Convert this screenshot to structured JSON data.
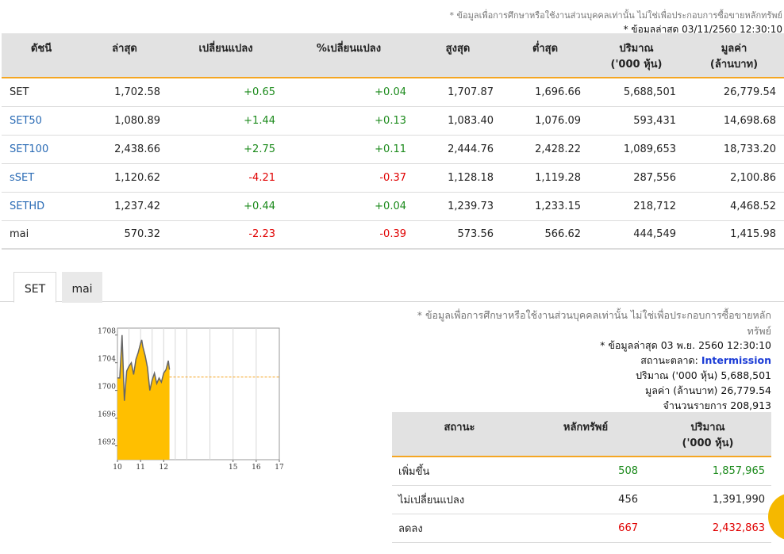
{
  "header": {
    "disclaimer": "* ข้อมูลเพื่อการศึกษาหรือใช้งานส่วนบุคคลเท่านั้น ไม่ใช่เพื่อประกอบการซื้อขายหลักทรัพย์",
    "updated": "* ข้อมูลล่าสุด 03/11/2560 12:30:10"
  },
  "index_table": {
    "headers": {
      "name": "ดัชนี",
      "last": "ล่าสุด",
      "change": "เปลี่ยนแปลง",
      "pct_change": "%เปลี่ยนแปลง",
      "high": "สูงสุด",
      "low": "ต่ำสุด",
      "volume_1": "ปริมาณ",
      "volume_2": "('000 หุ้น)",
      "value_1": "มูลค่า",
      "value_2": "(ล้านบาท)"
    },
    "rows": [
      {
        "name": "SET",
        "last": "1,702.58",
        "change": "+0.65",
        "pct": "+0.04",
        "high": "1,707.87",
        "low": "1,696.66",
        "volume": "5,688,501",
        "value": "26,779.54"
      },
      {
        "name": "SET50",
        "last": "1,080.89",
        "change": "+1.44",
        "pct": "+0.13",
        "high": "1,083.40",
        "low": "1,076.09",
        "volume": "593,431",
        "value": "14,698.68"
      },
      {
        "name": "SET100",
        "last": "2,438.66",
        "change": "+2.75",
        "pct": "+0.11",
        "high": "2,444.76",
        "low": "2,428.22",
        "volume": "1,089,653",
        "value": "18,733.20"
      },
      {
        "name": "sSET",
        "last": "1,120.62",
        "change": "-4.21",
        "pct": "-0.37",
        "high": "1,128.18",
        "low": "1,119.28",
        "volume": "287,556",
        "value": "2,100.86"
      },
      {
        "name": "SETHD",
        "last": "1,237.42",
        "change": "+0.44",
        "pct": "+0.04",
        "high": "1,239.73",
        "low": "1,233.15",
        "volume": "218,712",
        "value": "4,468.52"
      },
      {
        "name": "mai",
        "last": "570.32",
        "change": "-2.23",
        "pct": "-0.39",
        "high": "573.56",
        "low": "566.62",
        "volume": "444,549",
        "value": "1,415.98"
      }
    ]
  },
  "tabs": [
    {
      "label": "SET",
      "active": true
    },
    {
      "label": "mai",
      "active": false
    }
  ],
  "chart_data": {
    "type": "area",
    "x_ticks": [
      "10",
      "11",
      "12",
      "15",
      "16",
      "17"
    ],
    "y_ticks": [
      "1708",
      "1704",
      "1700",
      "1696",
      "1692"
    ],
    "ylim": [
      1690,
      1709
    ],
    "xlim": [
      10,
      17
    ],
    "previous_close": 1701.93,
    "x": [
      10.0,
      10.1,
      10.2,
      10.3,
      10.4,
      10.5,
      10.6,
      10.7,
      10.8,
      10.9,
      11.0,
      11.05,
      11.1,
      11.2,
      11.3,
      11.4,
      11.5,
      11.6,
      11.7,
      11.8,
      11.9,
      12.0,
      12.1,
      12.2,
      12.25
    ],
    "y": [
      1701.8,
      1701.8,
      1708.0,
      1698.5,
      1702.8,
      1703.5,
      1704.0,
      1702.3,
      1704.5,
      1705.5,
      1706.8,
      1707.3,
      1706.3,
      1705.0,
      1703.3,
      1700.0,
      1701.5,
      1702.5,
      1701.0,
      1701.8,
      1701.2,
      1702.5,
      1703.0,
      1704.3,
      1703.0
    ],
    "colors": {
      "fill": "#ffbf00",
      "line": "#666666",
      "ref_line": "#f5a623"
    }
  },
  "market_info": {
    "disclaimer": "* ข้อมูลเพื่อการศึกษาหรือใช้งานส่วนบุคคลเท่านั้น ไม่ใช่เพื่อประกอบการซื้อขายหลักทรัพย์",
    "updated": "* ข้อมูลล่าสุด 03 พ.ย. 2560 12:30:10",
    "status_label": "สถานะตลาด:",
    "status_value": "Intermission",
    "volume_label": "ปริมาณ ('000 หุ้น)",
    "volume_value": "5,688,501",
    "value_label": "มูลค่า (ล้านบาท)",
    "value_value": "26,779.54",
    "trades_label": "จำนวนรายการ",
    "trades_value": "208,913"
  },
  "breadth_table": {
    "headers": {
      "status": "สถานะ",
      "securities": "หลักทรัพย์",
      "volume_1": "ปริมาณ",
      "volume_2": "('000 หุ้น)"
    },
    "rows": [
      {
        "status": "เพิ่มขึ้น",
        "securities": "508",
        "volume": "1,857,965",
        "tone": "up"
      },
      {
        "status": "ไม่เปลี่ยนแปลง",
        "securities": "456",
        "volume": "1,391,990",
        "tone": "flat"
      },
      {
        "status": "ลดลง",
        "securities": "667",
        "volume": "2,432,863",
        "tone": "down"
      }
    ]
  }
}
